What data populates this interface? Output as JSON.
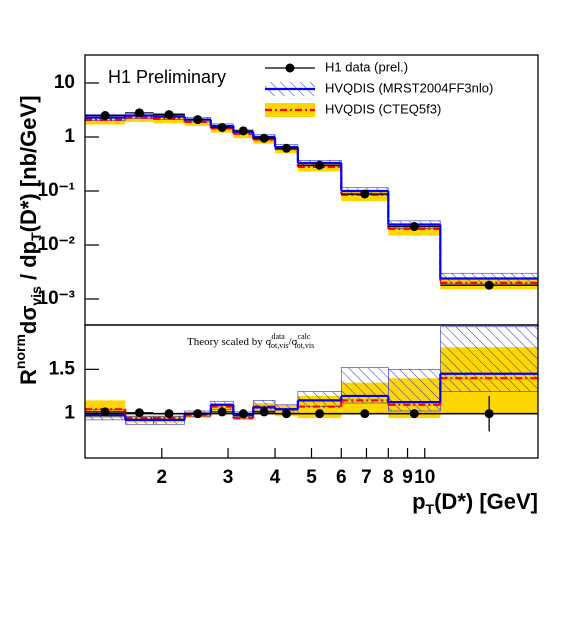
{
  "chart_data": [
    {
      "type": "histogram",
      "log_y": true,
      "annotation": "H1 Preliminary",
      "bins": [
        1.25,
        1.6,
        1.9,
        2.3,
        2.7,
        3.1,
        3.5,
        4.0,
        4.6,
        6.0,
        8.0,
        11.0,
        20.0
      ],
      "xlim": [
        1.25,
        20
      ],
      "ylim": [
        0.00033,
        33
      ],
      "yticks": [
        10,
        1,
        {
          "value": 0.1,
          "label": "10⁻¹"
        },
        {
          "value": 0.01,
          "label": "10⁻²"
        },
        {
          "value": 0.001,
          "label": "10⁻³"
        }
      ],
      "series": [
        {
          "name": "HVQDIS (CTEQ5f3)",
          "color": "#ff0000",
          "band_color": "#ffd700",
          "values": [
            2.1,
            2.3,
            2.2,
            1.9,
            1.45,
            1.15,
            0.9,
            0.6,
            0.28,
            0.085,
            0.02,
            0.002
          ],
          "low": [
            1.7,
            1.9,
            1.8,
            1.6,
            1.2,
            0.95,
            0.75,
            0.5,
            0.23,
            0.065,
            0.015,
            0.0015
          ],
          "high": [
            2.4,
            2.6,
            2.5,
            2.2,
            1.6,
            1.3,
            1.0,
            0.68,
            0.32,
            0.1,
            0.024,
            0.0025
          ]
        },
        {
          "name": "HVQDIS (MRST2004FF3nlo)",
          "color": "#0000ff",
          "band_color": "#3030d0",
          "values": [
            2.3,
            2.5,
            2.4,
            2.1,
            1.6,
            1.25,
            1.0,
            0.65,
            0.33,
            0.1,
            0.024,
            0.0024
          ],
          "low": [
            2.0,
            2.2,
            2.1,
            1.9,
            1.45,
            1.15,
            0.9,
            0.58,
            0.29,
            0.085,
            0.02,
            0.0019
          ],
          "high": [
            2.6,
            2.8,
            2.7,
            2.3,
            1.75,
            1.35,
            1.1,
            0.72,
            0.37,
            0.115,
            0.028,
            0.003
          ]
        },
        {
          "name": "H1 data (prel.)",
          "color": "#000000",
          "values": [
            2.5,
            2.8,
            2.6,
            2.1,
            1.5,
            1.3,
            0.95,
            0.62,
            0.3,
            0.088,
            0.022,
            0.0018
          ],
          "errors": [
            0.15,
            0.15,
            0.12,
            0.1,
            0.08,
            0.07,
            0.05,
            0.04,
            0.02,
            0.007,
            0.002,
            0.0003
          ]
        }
      ],
      "ylabel": {
        "r": "R",
        "sup": "norm",
        "d": "dσ",
        "sub": "vis",
        "mid": " / dp",
        "sub2": "T",
        "tail": "(D*) [nb/GeV]"
      }
    },
    {
      "type": "histogram",
      "log_y": false,
      "annotation": {
        "text": "Theory scaled by ",
        "num": "σ",
        "num_sup": "data",
        "num_sub": "tot,vis",
        "sep": "/",
        "den": "σ",
        "den_sup": "calc",
        "den_sub": "tot,vis"
      },
      "bins": [
        1.25,
        1.6,
        1.9,
        2.3,
        2.7,
        3.1,
        3.5,
        4.0,
        4.6,
        6.0,
        8.0,
        11.0,
        20.0
      ],
      "xlim": [
        1.25,
        20
      ],
      "xticks": [
        2,
        3,
        4,
        5,
        6,
        7,
        8,
        9,
        10
      ],
      "xlabel": {
        "p": "p",
        "sub": "T",
        "tail": "(D*) [GeV]"
      },
      "ylim": [
        0.5,
        2.0
      ],
      "yticks": [
        1,
        1.5
      ],
      "reference_line": 1,
      "series": [
        {
          "name": "HVQDIS (CTEQ5f3)",
          "color": "#ff0000",
          "band_color": "#ffd700",
          "values": [
            1.05,
            0.95,
            0.95,
            0.98,
            1.08,
            0.95,
            1.08,
            1.05,
            1.08,
            1.15,
            1.1,
            1.4
          ],
          "low": [
            0.95,
            0.9,
            0.9,
            0.95,
            1.03,
            0.93,
            1.0,
            0.97,
            0.95,
            1.0,
            0.95,
            1.0
          ],
          "high": [
            1.15,
            0.98,
            0.98,
            1.02,
            1.12,
            0.98,
            1.12,
            1.1,
            1.2,
            1.35,
            1.4,
            1.75
          ]
        },
        {
          "name": "HVQDIS (MRST2004FF3nlo)",
          "color": "#0000ff",
          "band_color": "#3030d0",
          "values": [
            0.98,
            0.93,
            0.93,
            1.0,
            1.1,
            0.98,
            1.07,
            1.05,
            1.15,
            1.2,
            1.13,
            1.45
          ],
          "low": [
            0.93,
            0.88,
            0.88,
            0.97,
            1.05,
            0.95,
            1.03,
            1.0,
            1.08,
            1.12,
            1.03,
            1.25
          ],
          "high": [
            1.05,
            0.97,
            0.97,
            1.03,
            1.14,
            1.02,
            1.15,
            1.1,
            1.25,
            1.52,
            1.5,
            1.98
          ]
        },
        {
          "name": "H1 data (prel.)",
          "color": "#000000",
          "values": [
            1.02,
            1.01,
            1.0,
            1.0,
            1.02,
            1.0,
            1.02,
            1.0,
            1.0,
            1.0,
            1.0,
            1.0
          ],
          "errors": [
            0.04,
            0.04,
            0.03,
            0.03,
            0.03,
            0.03,
            0.03,
            0.03,
            0.03,
            0.04,
            0.05,
            0.2
          ]
        }
      ]
    }
  ]
}
